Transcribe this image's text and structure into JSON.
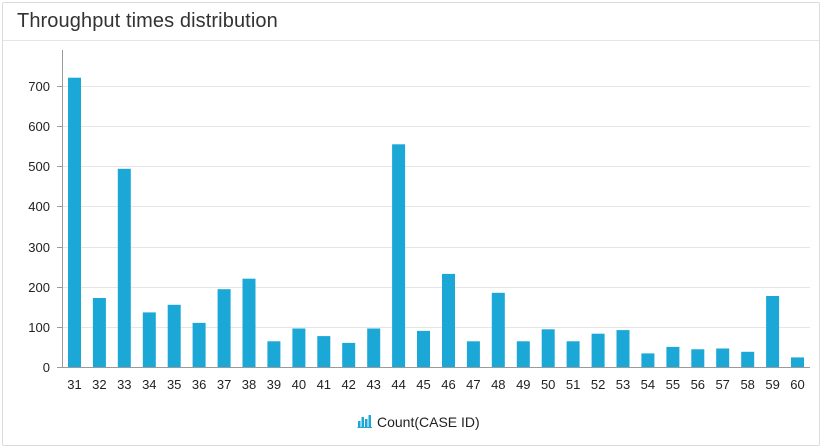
{
  "panel": {
    "title": "Throughput times distribution"
  },
  "colors": {
    "bar": "#1ba8d6",
    "grid": "#e6e6e6",
    "axis": "#9a9a9a"
  },
  "legend": {
    "icon": "bar-chart-icon",
    "label": "Count(CASE ID)"
  },
  "chart_data": {
    "type": "bar",
    "categories": [
      "31",
      "32",
      "33",
      "34",
      "35",
      "36",
      "37",
      "38",
      "39",
      "40",
      "41",
      "42",
      "43",
      "44",
      "45",
      "46",
      "47",
      "48",
      "49",
      "50",
      "51",
      "52",
      "53",
      "54",
      "55",
      "56",
      "57",
      "58",
      "59",
      "60"
    ],
    "series": [
      {
        "name": "Count(CASE ID)",
        "values": [
          721,
          172,
          494,
          136,
          155,
          110,
          194,
          220,
          64,
          96,
          77,
          60,
          96,
          555,
          90,
          232,
          64,
          185,
          64,
          94,
          64,
          83,
          92,
          34,
          50,
          44,
          46,
          38,
          177,
          24
        ]
      }
    ],
    "title": "Throughput times distribution",
    "xlabel": "",
    "ylabel": "",
    "ylim": [
      0,
      790
    ],
    "yticks": [
      0,
      100,
      200,
      300,
      400,
      500,
      600,
      700
    ],
    "grid": true,
    "legend_position": "bottom"
  }
}
